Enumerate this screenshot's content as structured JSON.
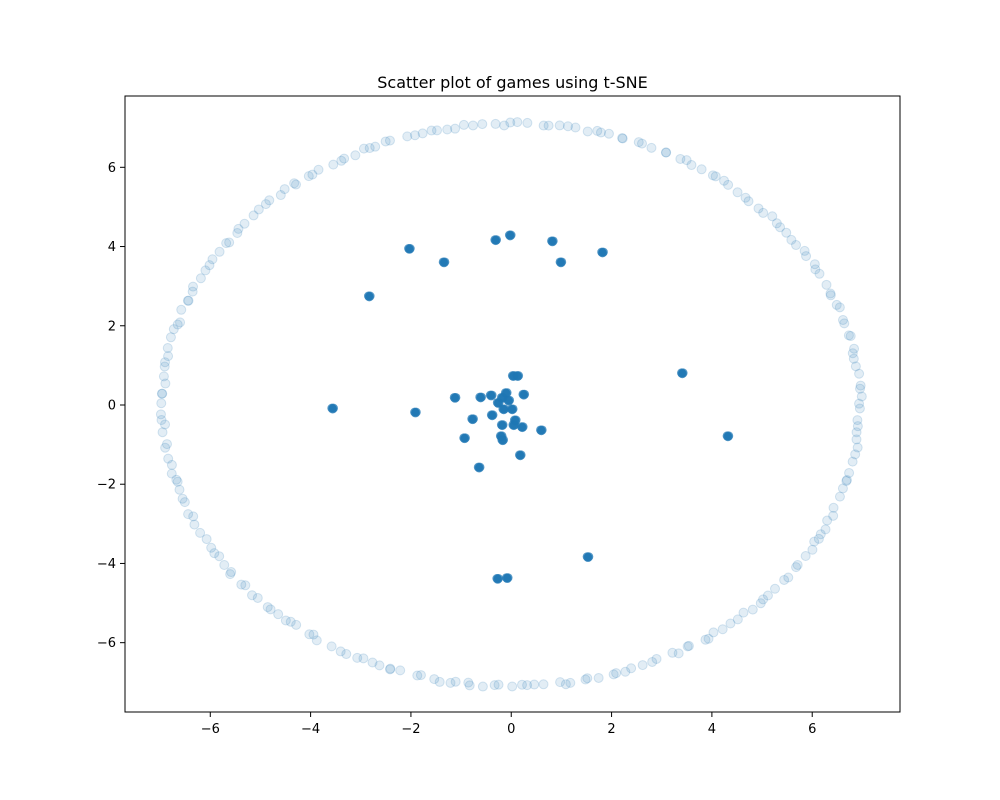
{
  "chart_data": {
    "type": "scatter",
    "title": "Scatter plot of games using t-SNE",
    "xlabel": "",
    "ylabel": "",
    "xlim": [
      -7.7,
      7.75
    ],
    "ylim": [
      -7.75,
      7.8
    ],
    "xticks": [
      -6,
      -4,
      -2,
      0,
      2,
      4,
      6
    ],
    "yticks": [
      -6,
      -4,
      -2,
      0,
      2,
      4,
      6
    ],
    "xtick_labels": [
      "−6",
      "−4",
      "−2",
      "0",
      "2",
      "4",
      "6"
    ],
    "ytick_labels": [
      "−6",
      "−4",
      "−2",
      "0",
      "2",
      "4",
      "6"
    ],
    "grid": false,
    "color": "#1f77b4",
    "faded_alpha": 0.13,
    "cluster_points": [
      [
        -2.03,
        3.95
      ],
      [
        -0.31,
        4.17
      ],
      [
        -0.02,
        4.29
      ],
      [
        0.82,
        4.14
      ],
      [
        1.82,
        3.86
      ],
      [
        -1.34,
        3.61
      ],
      [
        0.99,
        3.61
      ],
      [
        -2.83,
        2.75
      ],
      [
        3.41,
        0.81
      ],
      [
        4.32,
        -0.78
      ],
      [
        -3.56,
        -0.08
      ],
      [
        -1.91,
        -0.18
      ],
      [
        -1.12,
        0.19
      ],
      [
        -0.61,
        0.2
      ],
      [
        -0.4,
        0.25
      ],
      [
        -0.26,
        0.06
      ],
      [
        -0.18,
        0.19
      ],
      [
        -0.1,
        0.31
      ],
      [
        0.04,
        0.74
      ],
      [
        0.13,
        0.74
      ],
      [
        0.25,
        0.27
      ],
      [
        -0.15,
        -0.1
      ],
      [
        -0.05,
        0.12
      ],
      [
        0.02,
        -0.1
      ],
      [
        -0.38,
        -0.25
      ],
      [
        -0.77,
        -0.35
      ],
      [
        -0.18,
        -0.5
      ],
      [
        0.08,
        -0.38
      ],
      [
        0.05,
        -0.5
      ],
      [
        0.22,
        -0.55
      ],
      [
        0.6,
        -0.63
      ],
      [
        -0.93,
        -0.83
      ],
      [
        -0.2,
        -0.78
      ],
      [
        -0.17,
        -0.88
      ],
      [
        0.18,
        -1.26
      ],
      [
        -0.64,
        -1.57
      ],
      [
        1.53,
        -3.83
      ],
      [
        -0.27,
        -4.38
      ],
      [
        -0.08,
        -4.36
      ]
    ],
    "ring_radius_x": 6.95,
    "ring_radius_y": 7.1,
    "ring_point_count": 240
  }
}
